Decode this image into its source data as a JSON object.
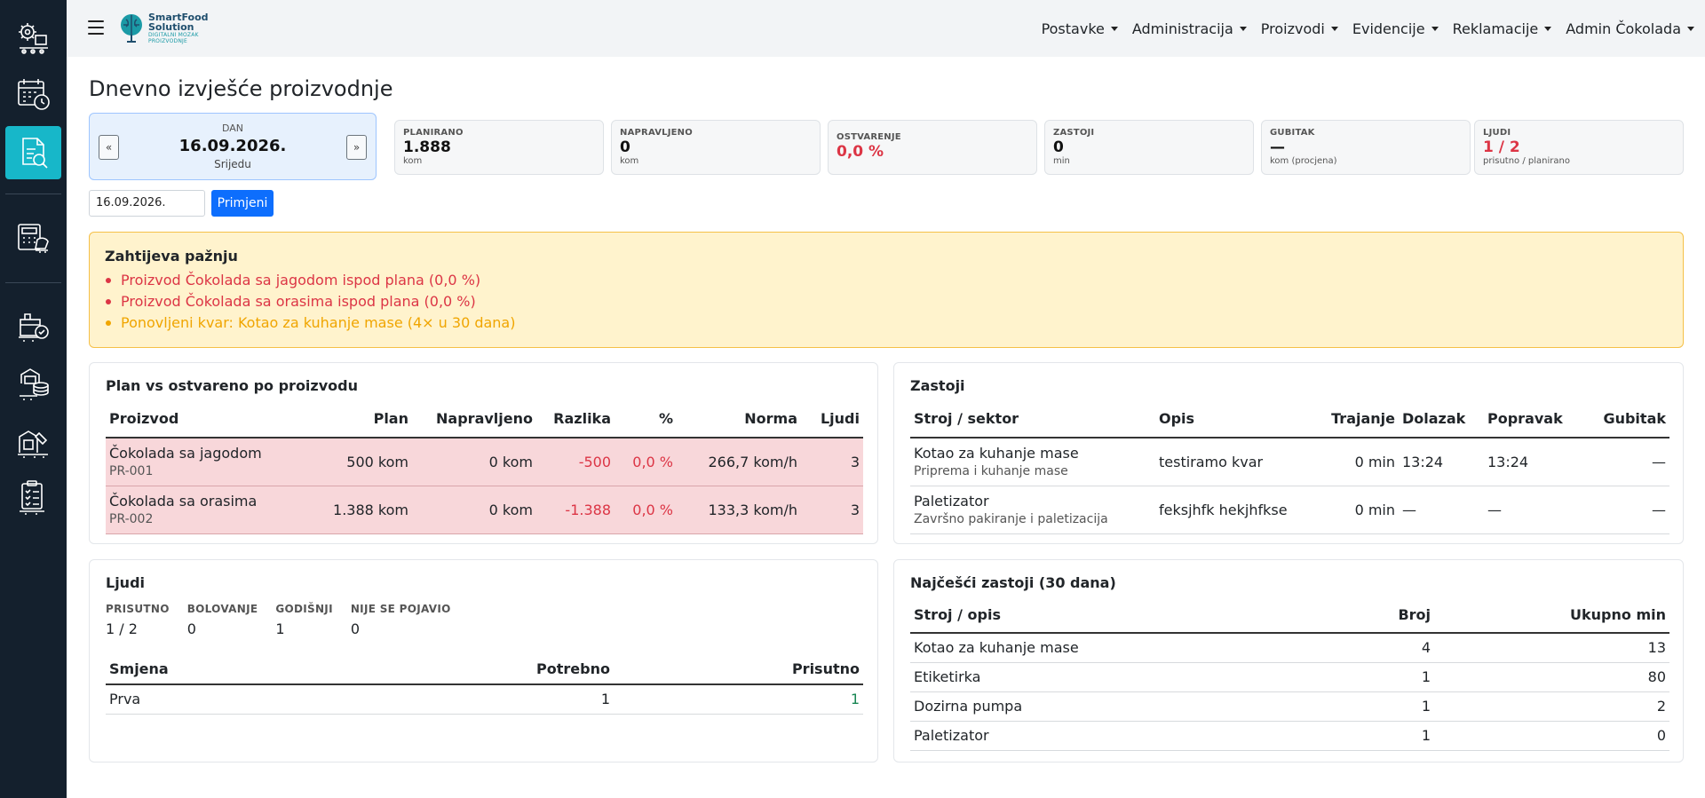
{
  "sidebar": {
    "items": [
      {
        "icon": "settings-conveyor-icon"
      },
      {
        "icon": "calendar-clock-icon"
      },
      {
        "icon": "report-icon",
        "active": true
      },
      {
        "icon": "calculator-icon"
      },
      {
        "icon": "production-line-icon"
      },
      {
        "icon": "coins-icon"
      },
      {
        "icon": "machine-icon"
      },
      {
        "icon": "checklist-icon"
      }
    ]
  },
  "header": {
    "logo": {
      "title_line1": "SmartFood",
      "title_line2": "Solution",
      "subtitle_line1": "DIGITALNI MOZAK",
      "subtitle_line2": "PROIZVODNJE"
    },
    "nav": [
      "Postavke",
      "Administracija",
      "Proizvodi",
      "Evidencije",
      "Reklamacije",
      "Admin Čokolada"
    ]
  },
  "page": {
    "title": "Dnevno izvješće proizvodnje"
  },
  "day": {
    "label": "DAN",
    "date": "16.09.2026.",
    "weekday": "Srijedu",
    "prev": "«",
    "next": "»"
  },
  "kpis": [
    {
      "label": "PLANIRANO",
      "value": "1.888",
      "unit": "kom",
      "color": "#111111"
    },
    {
      "label": "NAPRAVLJENO",
      "value": "0",
      "unit": "kom",
      "color": "#111111"
    },
    {
      "label": "OSTVARENJE",
      "value": "0,0 %",
      "unit": "",
      "color": "#dc3545"
    },
    {
      "label": "ZASTOJI",
      "value": "0",
      "unit": "min",
      "color": "#111111"
    },
    {
      "label": "GUBITAK",
      "value": "—",
      "unit": "kom (procjena)",
      "color": "#111111"
    },
    {
      "label": "LJUDI",
      "value": "1 / 2",
      "unit": "prisutno / planirano",
      "color": "#dc3545"
    }
  ],
  "filter": {
    "date_value": "16.09.2026.",
    "apply_label": "Primjeni"
  },
  "alert": {
    "title": "Zahtijeva pažnju",
    "items": [
      {
        "text": "Proizvod Čokolada sa jagodom ispod plana (0,0 %)",
        "level": "danger"
      },
      {
        "text": "Proizvod Čokolada sa orasima ispod plana (0,0 %)",
        "level": "danger"
      },
      {
        "text": "Ponovljeni kvar: Kotao za kuhanje mase (4× u 30 dana)",
        "level": "warning"
      }
    ]
  },
  "plan": {
    "title": "Plan vs ostvareno po proizvodu",
    "headers": [
      "Proizvod",
      "Plan",
      "Napravljeno",
      "Razlika",
      "%",
      "Norma",
      "Ljudi"
    ],
    "rows": [
      {
        "name": "Čokolada sa jagodom",
        "code": "PR-001",
        "plan": "500 kom",
        "made": "0 kom",
        "diff": "-500",
        "pct": "0,0 %",
        "norm": "266,7 kom/h",
        "people": "3"
      },
      {
        "name": "Čokolada sa orasima",
        "code": "PR-002",
        "plan": "1.388 kom",
        "made": "0 kom",
        "diff": "-1.388",
        "pct": "0,0 %",
        "norm": "133,3 kom/h",
        "people": "3"
      }
    ]
  },
  "downtime": {
    "title": "Zastoji",
    "headers": [
      "Stroj / sektor",
      "Opis",
      "Trajanje",
      "Dolazak",
      "Popravak",
      "Gubitak"
    ],
    "rows": [
      {
        "machine": "Kotao za kuhanje mase",
        "sector": "Priprema i kuhanje mase",
        "desc": "testiramo kvar",
        "duration": "0 min",
        "arrival": "13:24",
        "repair": "13:24",
        "loss": "—"
      },
      {
        "machine": "Paletizator",
        "sector": "Završno pakiranje i paletizacija",
        "desc": "feksjhfk hekjhfkse",
        "duration": "0 min",
        "arrival": "—",
        "repair": "—",
        "loss": "—"
      }
    ]
  },
  "people": {
    "title": "Ljudi",
    "stats": [
      {
        "label": "PRISUTNO",
        "value": "1 / 2"
      },
      {
        "label": "BOLOVANJE",
        "value": "0"
      },
      {
        "label": "GODIŠNJI",
        "value": "1"
      },
      {
        "label": "NIJE SE POJAVIO",
        "value": "0"
      }
    ],
    "headers": [
      "Smjena",
      "Potrebno",
      "Prisutno"
    ],
    "rows": [
      {
        "shift": "Prva",
        "needed": "1",
        "present": "1"
      }
    ]
  },
  "frequent": {
    "title": "Najčešći zastoji (30 dana)",
    "headers": [
      "Stroj / opis",
      "Broj",
      "Ukupno min"
    ],
    "rows": [
      {
        "name": "Kotao za kuhanje mase",
        "count": "4",
        "total": "13"
      },
      {
        "name": "Etiketirka",
        "count": "1",
        "total": "80"
      },
      {
        "name": "Dozirna pumpa",
        "count": "1",
        "total": "2"
      },
      {
        "name": "Paletizator",
        "count": "1",
        "total": "0"
      }
    ]
  }
}
